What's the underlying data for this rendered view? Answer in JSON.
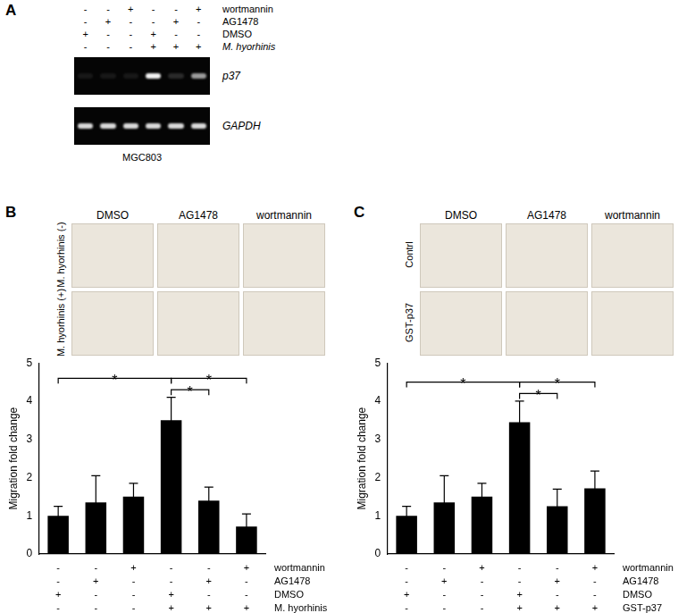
{
  "panel_a": {
    "label": "A",
    "conditions": [
      {
        "name": "wortmannin",
        "signs": [
          "-",
          "-",
          "+",
          "-",
          "-",
          "+"
        ]
      },
      {
        "name": "AG1478",
        "signs": [
          "-",
          "+",
          "-",
          "-",
          "+",
          "-"
        ]
      },
      {
        "name": "DMSO",
        "signs": [
          "+",
          "-",
          "-",
          "+",
          "-",
          "-"
        ]
      },
      {
        "name": "M. hyorhinis",
        "signs": [
          "-",
          "-",
          "-",
          "+",
          "+",
          "+"
        ]
      }
    ],
    "bands": [
      {
        "name": "p37",
        "intensity": [
          0.08,
          0.08,
          0.08,
          0.95,
          0.15,
          0.6
        ]
      },
      {
        "name": "GAPDH",
        "intensity": [
          0.85,
          0.85,
          0.85,
          0.85,
          0.85,
          0.85
        ]
      }
    ],
    "caption": "MGC803"
  },
  "photo_panels": [
    {
      "label": "B",
      "columns": [
        "DMSO",
        "AG1478",
        "wortmannin"
      ],
      "rows": [
        "M. hyorhinis (-)",
        "M. hyorhinis (+)"
      ]
    },
    {
      "label": "C",
      "columns": [
        "DMSO",
        "AG1478",
        "wortmannin"
      ],
      "rows": [
        "Contrl",
        "GST-p37"
      ]
    }
  ],
  "chart_data": [
    {
      "type": "bar",
      "panel": "B",
      "y_label": "Migration fold change",
      "color": "#000000",
      "values": [
        1.0,
        1.35,
        1.5,
        3.5,
        1.4,
        0.72
      ],
      "errors": [
        0.25,
        0.7,
        0.35,
        0.6,
        0.35,
        0.33
      ],
      "ylim": [
        0,
        5
      ],
      "yticks": [
        0,
        1,
        2,
        3,
        4,
        5
      ],
      "grid": false,
      "tick_labels": "y",
      "significance": [
        {
          "from": 0,
          "to": 3,
          "label": "*"
        },
        {
          "from": 3,
          "to": 4,
          "label": "*"
        },
        {
          "from": 3,
          "to": 5,
          "label": "*"
        }
      ],
      "conditions": [
        {
          "name": "wortmannin",
          "signs": [
            "-",
            "-",
            "+",
            "-",
            "-",
            "+"
          ]
        },
        {
          "name": "AG1478",
          "signs": [
            "-",
            "+",
            "-",
            "-",
            "+",
            "-"
          ]
        },
        {
          "name": "DMSO",
          "signs": [
            "+",
            "-",
            "-",
            "+",
            "-",
            "-"
          ]
        },
        {
          "name": "M. hyorhinis",
          "signs": [
            "-",
            "-",
            "-",
            "+",
            "+",
            "+"
          ]
        }
      ]
    },
    {
      "type": "bar",
      "panel": "C",
      "y_label": "Migration fold change",
      "color": "#000000",
      "values": [
        1.0,
        1.35,
        1.5,
        3.45,
        1.25,
        1.72
      ],
      "errors": [
        0.25,
        0.7,
        0.35,
        0.55,
        0.45,
        0.45
      ],
      "ylim": [
        0,
        5
      ],
      "yticks": [
        0,
        1,
        2,
        3,
        4,
        5
      ],
      "grid": false,
      "tick_labels": "y",
      "significance": [
        {
          "from": 0,
          "to": 3,
          "label": "*"
        },
        {
          "from": 3,
          "to": 4,
          "label": "*"
        },
        {
          "from": 3,
          "to": 5,
          "label": "*"
        }
      ],
      "conditions": [
        {
          "name": "wortmannin",
          "signs": [
            "-",
            "-",
            "+",
            "-",
            "-",
            "+"
          ]
        },
        {
          "name": "AG1478",
          "signs": [
            "-",
            "+",
            "-",
            "-",
            "+",
            "-"
          ]
        },
        {
          "name": "DMSO",
          "signs": [
            "+",
            "-",
            "-",
            "+",
            "-",
            "-"
          ]
        },
        {
          "name": "GST-p37",
          "signs": [
            "-",
            "-",
            "-",
            "+",
            "+",
            "+"
          ]
        }
      ]
    }
  ]
}
